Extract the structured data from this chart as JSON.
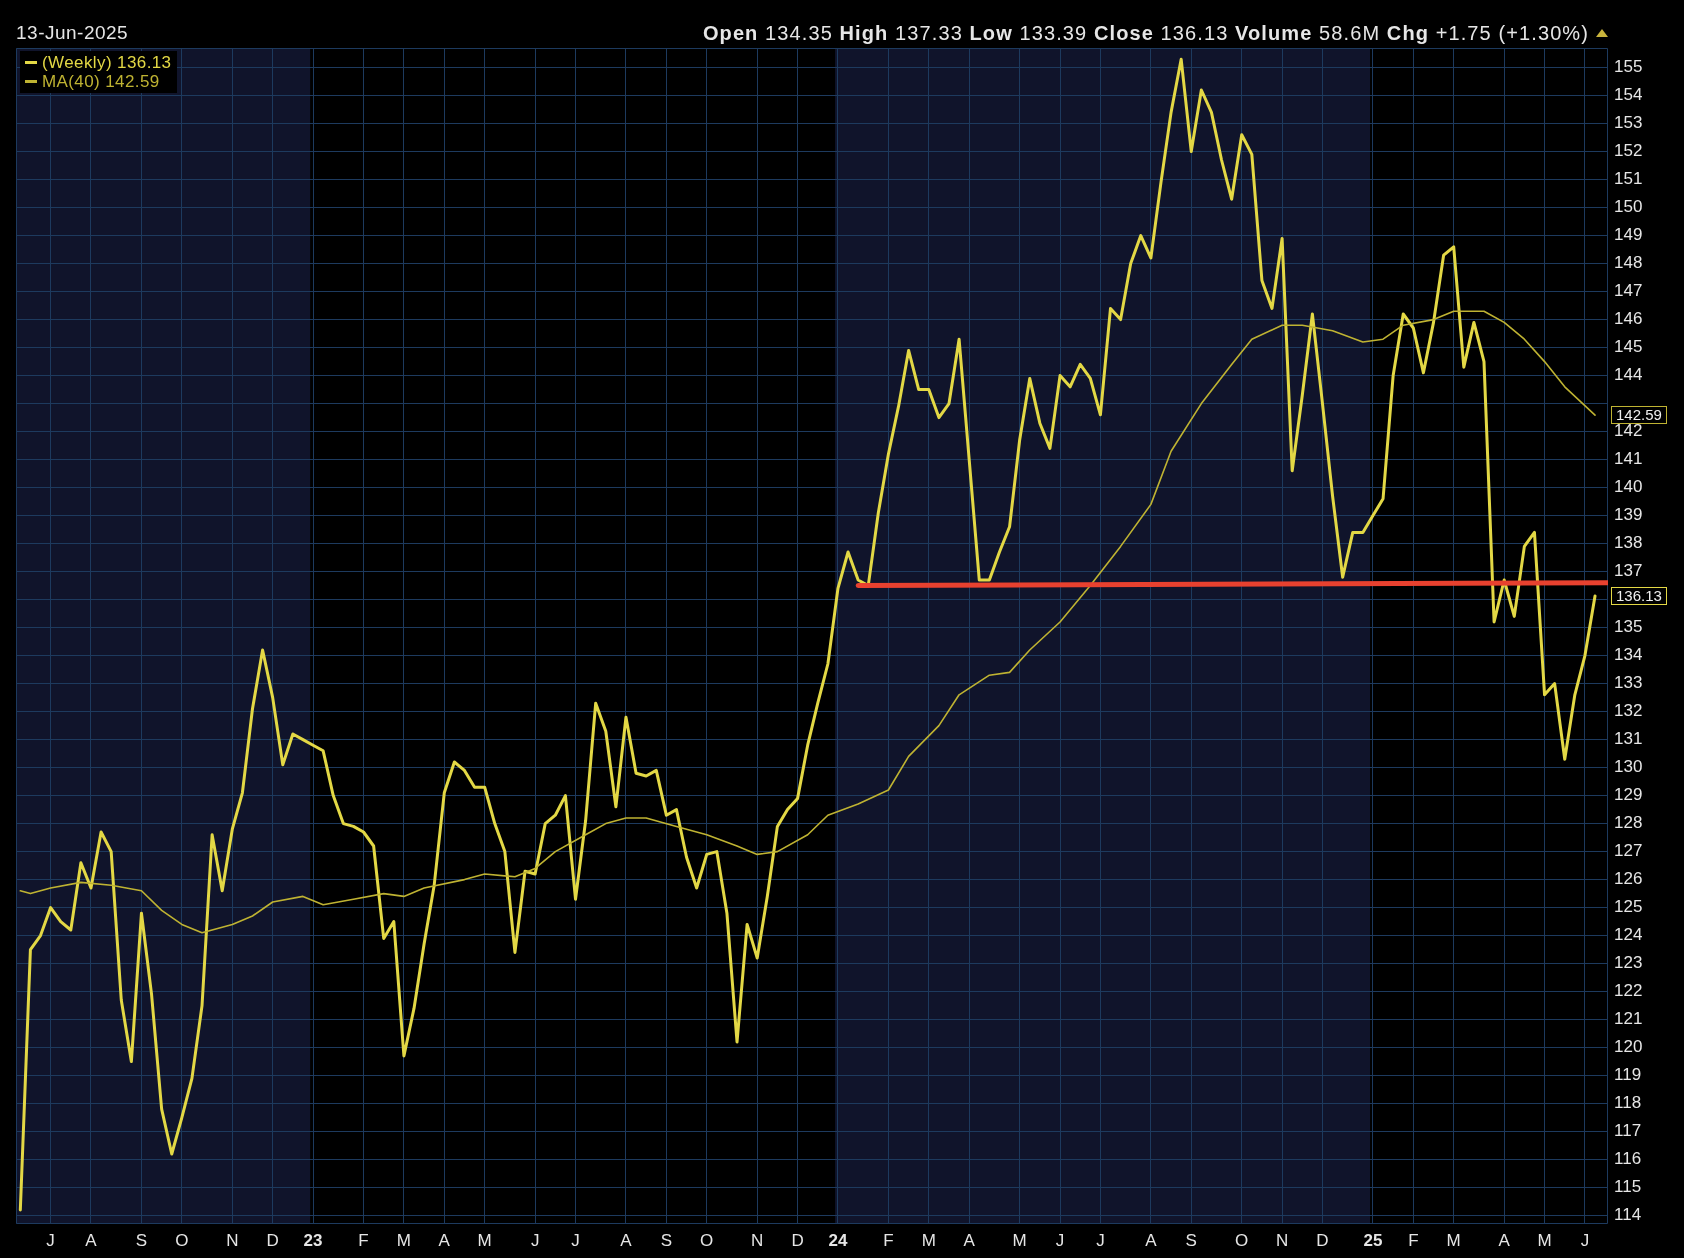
{
  "chart_data": {
    "type": "line",
    "subtitle": "13-Jun-2025",
    "annotations": [
      "Open 134.35 High 137.33 Low 133.39 Close 136.13 Volume 58.6M Chg +1.75 (+1.30%)",
      {
        "text": "142.59",
        "x": "2025-06-13",
        "y": 142.59
      },
      {
        "text": "136.13",
        "x": "2025-06-13",
        "y": 136.13
      }
    ],
    "x": [
      "2022-06-17",
      "2022-06-24",
      "2022-07-01",
      "2022-07-08",
      "2022-07-15",
      "2022-07-22",
      "2022-07-29",
      "2022-08-05",
      "2022-08-12",
      "2022-08-19",
      "2022-08-26",
      "2022-09-02",
      "2022-09-09",
      "2022-09-16",
      "2022-09-23",
      "2022-09-30",
      "2022-10-07",
      "2022-10-14",
      "2022-10-21",
      "2022-10-28",
      "2022-11-04",
      "2022-11-11",
      "2022-11-18",
      "2022-11-25",
      "2022-12-02",
      "2022-12-09",
      "2022-12-16",
      "2022-12-23",
      "2022-12-30",
      "2023-01-06",
      "2023-01-13",
      "2023-01-20",
      "2023-01-27",
      "2023-02-03",
      "2023-02-10",
      "2023-02-17",
      "2023-02-24",
      "2023-03-03",
      "2023-03-10",
      "2023-03-17",
      "2023-03-24",
      "2023-03-31",
      "2023-04-07",
      "2023-04-14",
      "2023-04-21",
      "2023-04-28",
      "2023-05-05",
      "2023-05-12",
      "2023-05-19",
      "2023-05-26",
      "2023-06-02",
      "2023-06-09",
      "2023-06-16",
      "2023-06-23",
      "2023-06-30",
      "2023-07-07",
      "2023-07-14",
      "2023-07-21",
      "2023-07-28",
      "2023-08-04",
      "2023-08-11",
      "2023-08-18",
      "2023-08-25",
      "2023-09-01",
      "2023-09-08",
      "2023-09-15",
      "2023-09-22",
      "2023-09-29",
      "2023-10-06",
      "2023-10-13",
      "2023-10-20",
      "2023-10-27",
      "2023-11-03",
      "2023-11-10",
      "2023-11-17",
      "2023-11-24",
      "2023-12-01",
      "2023-12-08",
      "2023-12-15",
      "2023-12-22",
      "2023-12-29",
      "2024-01-05",
      "2024-01-12",
      "2024-01-19",
      "2024-01-26",
      "2024-02-02",
      "2024-02-09",
      "2024-02-16",
      "2024-02-23",
      "2024-03-01",
      "2024-03-08",
      "2024-03-15",
      "2024-03-22",
      "2024-03-29",
      "2024-04-05",
      "2024-04-12",
      "2024-04-19",
      "2024-04-26",
      "2024-05-03",
      "2024-05-10",
      "2024-05-17",
      "2024-05-24",
      "2024-05-31",
      "2024-06-07",
      "2024-06-14",
      "2024-06-21",
      "2024-06-28",
      "2024-07-05",
      "2024-07-12",
      "2024-07-19",
      "2024-07-26",
      "2024-08-02",
      "2024-08-09",
      "2024-08-16",
      "2024-08-23",
      "2024-08-30",
      "2024-09-06",
      "2024-09-13",
      "2024-09-20",
      "2024-09-27",
      "2024-10-04",
      "2024-10-11",
      "2024-10-18",
      "2024-10-25",
      "2024-11-01",
      "2024-11-08",
      "2024-11-15",
      "2024-11-22",
      "2024-11-29",
      "2024-12-06",
      "2024-12-13",
      "2024-12-20",
      "2024-12-27",
      "2025-01-03",
      "2025-01-10",
      "2025-01-17",
      "2025-01-24",
      "2025-01-31",
      "2025-02-07",
      "2025-02-14",
      "2025-02-21",
      "2025-02-28",
      "2025-03-07",
      "2025-03-14",
      "2025-03-21",
      "2025-03-28",
      "2025-04-04",
      "2025-04-11",
      "2025-04-18",
      "2025-04-25",
      "2025-05-02",
      "2025-05-09",
      "2025-05-16",
      "2025-05-23",
      "2025-05-30",
      "2025-06-06",
      "2025-06-13"
    ],
    "series": [
      {
        "name": "(Weekly) 136.13",
        "color": "#e3d845",
        "values": [
          114.2,
          123.5,
          124.0,
          125.0,
          124.5,
          124.2,
          126.6,
          125.7,
          127.7,
          127.0,
          121.7,
          119.5,
          124.8,
          121.9,
          117.8,
          116.2,
          117.5,
          118.9,
          121.5,
          127.6,
          125.6,
          127.8,
          129.1,
          132.1,
          134.2,
          132.5,
          130.1,
          131.2,
          131.0,
          130.8,
          130.6,
          129.0,
          128.0,
          127.9,
          127.7,
          127.2,
          123.9,
          124.5,
          119.7,
          121.4,
          123.7,
          125.8,
          129.1,
          130.2,
          129.9,
          129.3,
          129.3,
          128.0,
          127.0,
          123.4,
          126.3,
          126.2,
          128.0,
          128.3,
          129.0,
          125.3,
          128.1,
          132.3,
          131.3,
          128.6,
          131.8,
          129.8,
          129.7,
          129.9,
          128.3,
          128.5,
          126.8,
          125.7,
          126.9,
          127.0,
          124.8,
          120.2,
          124.4,
          123.2,
          125.4,
          127.9,
          128.5,
          128.9,
          130.8,
          132.3,
          133.7,
          136.4,
          137.7,
          136.7,
          136.5,
          139.1,
          141.2,
          142.9,
          144.9,
          143.5,
          143.5,
          142.5,
          143.0,
          145.3,
          141.0,
          136.7,
          136.7,
          137.7,
          138.6,
          141.7,
          143.9,
          142.3,
          141.4,
          144.0,
          143.6,
          144.4,
          143.9,
          142.6,
          146.4,
          146.0,
          148.0,
          149.0,
          148.2,
          150.9,
          153.4,
          155.3,
          152.0,
          154.2,
          153.4,
          151.7,
          150.3,
          152.6,
          151.9,
          147.4,
          146.4,
          148.9,
          140.6,
          143.3,
          146.2,
          143.0,
          139.7,
          136.8,
          138.4,
          138.4,
          139.0,
          139.6,
          144.0,
          146.2,
          145.7,
          144.1,
          145.9,
          148.3,
          148.6,
          144.3,
          145.9,
          144.5,
          135.2,
          136.7,
          135.4,
          137.9,
          138.4,
          132.6,
          133.0,
          130.3,
          132.6,
          134.0,
          136.13
        ]
      },
      {
        "name": "MA(40) 142.59",
        "color": "#bfb332",
        "x": [
          "2022-06-17",
          "2022-06-24",
          "2022-07-08",
          "2022-07-29",
          "2022-08-19",
          "2022-09-09",
          "2022-09-23",
          "2022-10-07",
          "2022-10-21",
          "2022-11-11",
          "2022-11-25",
          "2022-12-09",
          "2022-12-30",
          "2023-01-13",
          "2023-02-03",
          "2023-02-24",
          "2023-03-10",
          "2023-03-24",
          "2023-04-21",
          "2023-05-05",
          "2023-05-26",
          "2023-06-09",
          "2023-06-23",
          "2023-07-14",
          "2023-07-28",
          "2023-08-11",
          "2023-08-25",
          "2023-09-15",
          "2023-10-06",
          "2023-10-27",
          "2023-11-10",
          "2023-11-24",
          "2023-12-15",
          "2023-12-29",
          "2024-01-19",
          "2024-02-09",
          "2024-02-23",
          "2024-03-15",
          "2024-03-29",
          "2024-04-19",
          "2024-05-03",
          "2024-05-17",
          "2024-06-07",
          "2024-06-28",
          "2024-07-19",
          "2024-08-09",
          "2024-08-23",
          "2024-09-13",
          "2024-10-04",
          "2024-10-18",
          "2024-11-08",
          "2024-11-22",
          "2024-12-13",
          "2025-01-03",
          "2025-01-17",
          "2025-01-31",
          "2025-02-21",
          "2025-03-07",
          "2025-03-28",
          "2025-04-11",
          "2025-04-25",
          "2025-05-09",
          "2025-05-23",
          "2025-06-13"
        ],
        "values": [
          125.6,
          125.5,
          125.7,
          125.9,
          125.8,
          125.6,
          124.9,
          124.4,
          124.1,
          124.4,
          124.7,
          125.2,
          125.4,
          125.1,
          125.3,
          125.5,
          125.4,
          125.7,
          126.0,
          126.2,
          126.1,
          126.4,
          127.0,
          127.6,
          128.0,
          128.2,
          128.2,
          127.9,
          127.6,
          127.2,
          126.9,
          127.0,
          127.6,
          128.3,
          128.7,
          129.2,
          130.4,
          131.5,
          132.6,
          133.3,
          133.4,
          134.2,
          135.2,
          136.5,
          137.9,
          139.4,
          141.3,
          143.0,
          144.4,
          145.3,
          145.8,
          145.8,
          145.6,
          145.2,
          145.3,
          145.8,
          146.0,
          146.3,
          146.3,
          145.9,
          145.3,
          144.5,
          143.6,
          142.59
        ]
      },
      {
        "color": "#e8412f",
        "x": [
          "2024-01-19",
          "2025-06-22"
        ],
        "values": [
          136.5,
          136.6
        ]
      }
    ],
    "xlim": [
      "2022-06-14",
      "2025-06-22"
    ],
    "xticks": [
      {
        "value": "2022-07-08",
        "label": "J"
      },
      {
        "value": "2022-08-05",
        "label": "A"
      },
      {
        "value": "2022-09-09",
        "label": "S"
      },
      {
        "value": "2022-10-07",
        "label": "O"
      },
      {
        "value": "2022-11-11",
        "label": "N"
      },
      {
        "value": "2022-12-09",
        "label": "D"
      },
      {
        "value": "2023-01-06",
        "label": "23"
      },
      {
        "value": "2023-02-10",
        "label": "F"
      },
      {
        "value": "2023-03-10",
        "label": "M"
      },
      {
        "value": "2023-04-07",
        "label": "A"
      },
      {
        "value": "2023-05-05",
        "label": "M"
      },
      {
        "value": "2023-06-09",
        "label": "J"
      },
      {
        "value": "2023-07-07",
        "label": "J"
      },
      {
        "value": "2023-08-11",
        "label": "A"
      },
      {
        "value": "2023-09-08",
        "label": "S"
      },
      {
        "value": "2023-10-06",
        "label": "O"
      },
      {
        "value": "2023-11-10",
        "label": "N"
      },
      {
        "value": "2023-12-08",
        "label": "D"
      },
      {
        "value": "2024-01-05",
        "label": "24"
      },
      {
        "value": "2024-02-09",
        "label": "F"
      },
      {
        "value": "2024-03-08",
        "label": "M"
      },
      {
        "value": "2024-04-05",
        "label": "A"
      },
      {
        "value": "2024-05-10",
        "label": "M"
      },
      {
        "value": "2024-06-07",
        "label": "J"
      },
      {
        "value": "2024-07-05",
        "label": "J"
      },
      {
        "value": "2024-08-09",
        "label": "A"
      },
      {
        "value": "2024-09-06",
        "label": "S"
      },
      {
        "value": "2024-10-11",
        "label": "O"
      },
      {
        "value": "2024-11-08",
        "label": "N"
      },
      {
        "value": "2024-12-06",
        "label": "D"
      },
      {
        "value": "2025-01-10",
        "label": "25"
      },
      {
        "value": "2025-02-07",
        "label": "F"
      },
      {
        "value": "2025-03-07",
        "label": "M"
      },
      {
        "value": "2025-04-11",
        "label": "A"
      },
      {
        "value": "2025-05-09",
        "label": "M"
      },
      {
        "value": "2025-06-06",
        "label": "J"
      }
    ],
    "ylim": [
      113.7,
      155.7
    ],
    "yticks": [
      114,
      115,
      116,
      117,
      118,
      119,
      120,
      121,
      122,
      123,
      124,
      125,
      126,
      127,
      128,
      129,
      130,
      131,
      132,
      133,
      134,
      135,
      {
        "value": 136,
        "label": null
      },
      137,
      138,
      139,
      140,
      141,
      142,
      {
        "value": 143,
        "label": null
      },
      144,
      145,
      146,
      147,
      148,
      149,
      150,
      151,
      152,
      153,
      154,
      155
    ],
    "bands": [
      {
        "axis": "x",
        "from": "2022-06-14",
        "to": "2023-01-04",
        "color": "#10142b"
      },
      {
        "axis": "x",
        "from": "2024-01-03",
        "to": "2025-01-08",
        "color": "#10142b"
      }
    ],
    "grid": true,
    "legend": "top left",
    "marker": "none",
    "line_style": "solid"
  }
}
